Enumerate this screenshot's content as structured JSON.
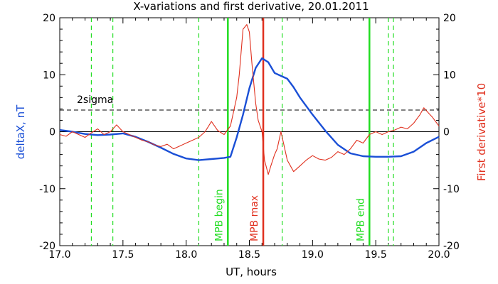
{
  "chart_data": {
    "type": "line",
    "title": "X-variations and first derivative, 20.01.2011",
    "xlabel": "UT, hours",
    "ylabel_left": "deltaX, nT",
    "ylabel_right": "First derivative*10",
    "xlim": [
      17.0,
      20.0
    ],
    "ylim_left": [
      -20,
      20
    ],
    "ylim_right": [
      -20,
      20
    ],
    "x_ticks": [
      "17.0",
      "17.5",
      "18.0",
      "18.5",
      "19.0",
      "19.5",
      "20.0"
    ],
    "y_ticks_left": [
      "-20",
      "-10",
      "0",
      "10",
      "20"
    ],
    "y_ticks_right": [
      "-20",
      "-10",
      "0",
      "10",
      "20"
    ],
    "colors": {
      "deltaX": "#1a4fd6",
      "derivative": "#e0301e",
      "green": "#22dd22",
      "red": "#e0301e"
    },
    "threshold": {
      "label": "2sigma",
      "value": 3.8
    },
    "zero_line": 0,
    "vertical_lines": [
      {
        "x": 17.25,
        "style": "dashed",
        "color": "green"
      },
      {
        "x": 17.42,
        "style": "dashed",
        "color": "green"
      },
      {
        "x": 18.1,
        "style": "dashed",
        "color": "green"
      },
      {
        "x": 18.33,
        "style": "solid",
        "color": "green",
        "label": "MPB begin"
      },
      {
        "x": 18.61,
        "style": "solid",
        "color": "red",
        "label": "MPB max"
      },
      {
        "x": 18.76,
        "style": "dashed",
        "color": "green"
      },
      {
        "x": 19.45,
        "style": "solid",
        "color": "green",
        "label": "MPB end"
      },
      {
        "x": 19.6,
        "style": "dashed",
        "color": "green"
      },
      {
        "x": 19.64,
        "style": "dashed",
        "color": "green"
      }
    ],
    "series": [
      {
        "key": "deltaX",
        "axis": "left",
        "x": [
          17.0,
          17.1,
          17.2,
          17.3,
          17.4,
          17.5,
          17.6,
          17.7,
          17.8,
          17.9,
          18.0,
          18.1,
          18.2,
          18.3,
          18.35,
          18.4,
          18.45,
          18.5,
          18.55,
          18.6,
          18.65,
          18.7,
          18.75,
          18.8,
          18.85,
          18.9,
          19.0,
          19.1,
          19.2,
          19.3,
          19.4,
          19.5,
          19.6,
          19.7,
          19.8,
          19.9,
          20.0
        ],
        "y": [
          0.3,
          0.0,
          -0.4,
          -0.6,
          -0.5,
          -0.3,
          -0.9,
          -1.8,
          -2.8,
          -3.9,
          -4.7,
          -5.0,
          -4.8,
          -4.6,
          -4.4,
          -1.0,
          3.0,
          7.6,
          11.2,
          12.9,
          12.2,
          10.3,
          9.8,
          9.3,
          7.8,
          6.0,
          3.0,
          0.2,
          -2.3,
          -3.8,
          -4.3,
          -4.4,
          -4.4,
          -4.3,
          -3.5,
          -2.0,
          -0.9
        ]
      },
      {
        "key": "derivative",
        "axis": "right",
        "x": [
          17.0,
          17.05,
          17.1,
          17.15,
          17.2,
          17.25,
          17.3,
          17.35,
          17.4,
          17.45,
          17.5,
          17.55,
          17.6,
          17.65,
          17.7,
          17.75,
          17.8,
          17.85,
          17.9,
          17.95,
          18.0,
          18.05,
          18.1,
          18.15,
          18.2,
          18.25,
          18.3,
          18.35,
          18.4,
          18.42,
          18.45,
          18.48,
          18.5,
          18.52,
          18.55,
          18.57,
          18.6,
          18.62,
          18.65,
          18.67,
          18.7,
          18.72,
          18.75,
          18.77,
          18.8,
          18.85,
          18.9,
          18.95,
          19.0,
          19.05,
          19.1,
          19.15,
          19.2,
          19.25,
          19.3,
          19.35,
          19.4,
          19.45,
          19.5,
          19.55,
          19.6,
          19.65,
          19.7,
          19.75,
          19.8,
          19.85,
          19.88,
          19.92,
          19.95,
          20.0
        ],
        "y": [
          -0.5,
          -0.8,
          0.0,
          -0.5,
          -1.0,
          -0.2,
          0.5,
          -0.5,
          0.0,
          1.2,
          0.0,
          -0.5,
          -1.0,
          -1.5,
          -1.8,
          -2.3,
          -2.6,
          -2.2,
          -3.0,
          -2.5,
          -2.0,
          -1.5,
          -1.0,
          0.0,
          1.8,
          0.2,
          -0.5,
          1.0,
          6.0,
          10.0,
          18.0,
          18.8,
          17.5,
          12.0,
          5.0,
          2.0,
          0.0,
          -5.0,
          -7.5,
          -6.0,
          -4.0,
          -3.0,
          0.0,
          -2.0,
          -5.0,
          -7.0,
          -6.0,
          -5.0,
          -4.2,
          -4.8,
          -5.0,
          -4.5,
          -3.5,
          -4.0,
          -3.0,
          -1.5,
          -2.0,
          -0.5,
          0.0,
          -0.5,
          0.0,
          0.3,
          0.8,
          0.5,
          1.5,
          3.0,
          4.2,
          3.2,
          2.5,
          1.0
        ]
      }
    ]
  }
}
